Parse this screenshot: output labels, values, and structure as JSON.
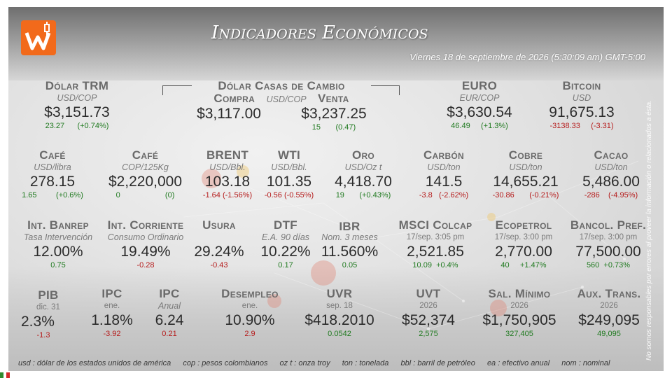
{
  "header": {
    "title_first_cap": "I",
    "title_first_rest": "NDICADORES",
    "title_second_cap": "E",
    "title_second_rest": "CONÓMICOS",
    "datetime": "Viernes 18 de septiembre de 2026 (5:30:09 am) GMT-5:00"
  },
  "disclaimer": "No somos responsables por errores al proveer la información o relacionados a ésta.",
  "row1": {
    "trm": {
      "name": "Dólar TRM",
      "unit": "USD/COP",
      "value": "$3,151.73",
      "change_abs": "23.27",
      "change_pct": "(+0.74%)"
    },
    "casas": {
      "name": "Dólar Casas de Cambio",
      "unit": "USD/COP",
      "compra_label": "Compra",
      "venta_label": "Venta",
      "compra_value": "$3,117.00",
      "venta_value": "$3,237.25",
      "venta_change_abs": "15",
      "venta_change_pct": "(0.47)"
    },
    "euro": {
      "name": "EURO",
      "unit": "EUR/COP",
      "value": "$3,630.54",
      "change_abs": "46.49",
      "change_pct": "(+1.3%)"
    },
    "bitcoin": {
      "name": "Bitcoin",
      "unit": "USD",
      "value": "91,675.13",
      "change_abs": "-3138.33",
      "change_pct": "(-3.31)"
    }
  },
  "row2": [
    {
      "name": "Café",
      "unit": "USD/libra",
      "value": "278.15",
      "change_abs": "1.65",
      "change_pct": "(+0.6%)",
      "dir": "g"
    },
    {
      "name": "Café",
      "unit": "COP/125Kg",
      "value": "$2,220,000",
      "change_abs": "0",
      "change_pct": "(0)",
      "dir": "g"
    },
    {
      "name": "BRENT",
      "unit": "USD/Bbl.",
      "value": "103.18",
      "change_abs": "-1.64",
      "change_pct": "(-1.56%)",
      "dir": "r"
    },
    {
      "name": "WTI",
      "unit": "USD/Bbl.",
      "value": "101.35",
      "change_abs": "-0.56",
      "change_pct": "(-0.55%)",
      "dir": "r"
    },
    {
      "name": "Oro",
      "unit": "USD/Oz t",
      "value": "4,418.70",
      "change_abs": "19",
      "change_pct": "(+0.43%)",
      "dir": "g"
    },
    {
      "name": "Carbón",
      "unit": "USD/ton",
      "value": "141.5",
      "change_abs": "-3.8",
      "change_pct": "(-2.62%)",
      "dir": "r"
    },
    {
      "name": "Cobre",
      "unit": "USD/ton",
      "value": "14,655.21",
      "change_abs": "-30.86",
      "change_pct": "(-0.21%)",
      "dir": "r"
    },
    {
      "name": "Cacao",
      "unit": "USD/ton",
      "value": "5,486.00",
      "change_abs": "-286",
      "change_pct": "(-4.95%)",
      "dir": "r"
    }
  ],
  "row3": [
    {
      "name": "Int. Banrep",
      "unit": "Tasa Intervención",
      "value": "12.00%",
      "change": "0.75",
      "dir": "g"
    },
    {
      "name": "Int. Corriente",
      "unit": "Consumo Ordinario",
      "value": "19.49%",
      "change": "-0.28",
      "dir": "r"
    },
    {
      "name": "Usura",
      "unit": "",
      "value": "29.24%",
      "change": "-0.43",
      "dir": "r"
    },
    {
      "name": "DTF",
      "unit": "E.A. 90 días",
      "value": "10.22%",
      "change": "0.17",
      "dir": "g"
    },
    {
      "name": "IBR",
      "unit": "Nom. 3 meses",
      "value": "11.560%",
      "change": "0.05",
      "dir": "g"
    },
    {
      "name": "MSCI Colcap",
      "unit": "17/sep. 3:05 pm",
      "value": "2,521.85",
      "change_abs": "10.09",
      "change_pct": "+0.4%",
      "dir": "g"
    },
    {
      "name": "Ecopetrol",
      "unit": "17/sep. 3:00 pm",
      "value": "2,770.00",
      "change_abs": "40",
      "change_pct": "+1.47%",
      "dir": "g"
    },
    {
      "name": "Bancol. Pref.",
      "unit": "17/sep. 3:00 pm",
      "value": "77,500.00",
      "change_abs": "560",
      "change_pct": "+0.73%",
      "dir": "g"
    }
  ],
  "row4": [
    {
      "name": "PIB",
      "unit": "dic. 31",
      "value": "2.3%",
      "change": "-1.3",
      "dir": "r"
    },
    {
      "name": "IPC",
      "unit": "ene.",
      "value": "1.18%",
      "change": "-3.92",
      "dir": "r"
    },
    {
      "name": "IPC",
      "unit": "Anual",
      "value": "6.24",
      "change": "0.21",
      "dir": "r"
    },
    {
      "name": "Desempleo",
      "unit": "ene.",
      "value": "10.90%",
      "change": "2.9",
      "dir": "r"
    },
    {
      "name": "UVR",
      "unit": "sep. 18",
      "value": "$418.2010",
      "change": "0.0542",
      "dir": "g"
    },
    {
      "name": "UVT",
      "unit": "2026",
      "value": "$52,374",
      "change": "2,575",
      "dir": "g"
    },
    {
      "name": "Sal. Mínimo",
      "unit": "2026",
      "value": "$1,750,905",
      "change": "327,405",
      "dir": "g"
    },
    {
      "name": "Aux. Trans.",
      "unit": "2026",
      "value": "$249,095",
      "change": "49,095",
      "dir": "g"
    }
  ],
  "footer": [
    "usd : dólar de los estados unidos de américa",
    "cop : pesos colombianos",
    "oz t : onza troy",
    "ton : tonelada",
    "bbl : barril de petróleo",
    "ea : efectivo anual",
    "nom : nominal"
  ],
  "colors": {
    "logo": "#f26a1b",
    "positive": "#207a20",
    "negative": "#b51c1c",
    "title": "#ffffff"
  }
}
